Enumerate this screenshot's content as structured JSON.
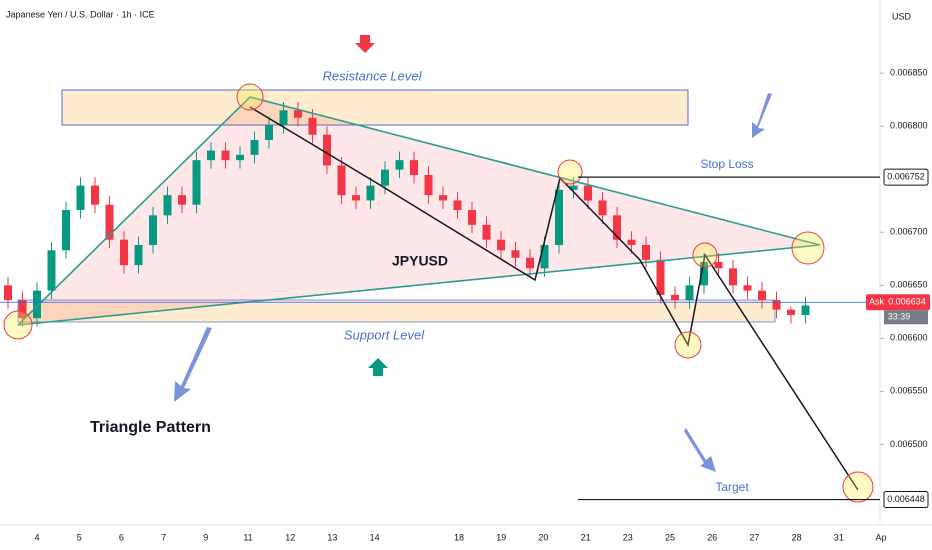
{
  "chart_data": {
    "type": "candlestick",
    "title": "Japanese Yen / U.S. Dollar · 1h · ICE",
    "currency": "USD",
    "annotations": {
      "resistance": "Resistance Level",
      "support": "Support Level",
      "symbol": "JPYUSD",
      "pattern": "Triangle Pattern"
    },
    "stop_loss": {
      "name": "Stop Loss",
      "value": 0.006752,
      "label": "0.006752"
    },
    "target": {
      "name": "Target",
      "value": 0.006448,
      "label": "0.006448"
    },
    "last_price": {
      "name": "Ask",
      "value": 0.006634,
      "label": "0.006634",
      "countdown": "33:39"
    },
    "categories": [
      "4",
      "5",
      "6",
      "7",
      "9",
      "11",
      "12",
      "13",
      "14",
      null,
      "18",
      "19",
      "20",
      "21",
      "23",
      "25",
      "26",
      "27",
      "28",
      "31",
      "Ap"
    ],
    "ylim": [
      0.006424,
      0.006919
    ],
    "yticks": [
      {
        "value": 0.0065,
        "label": "0.006500"
      },
      {
        "value": 0.00655,
        "label": "0.006550"
      },
      {
        "value": 0.0066,
        "label": "0.006600"
      },
      {
        "value": 0.00665,
        "label": "0.006650"
      },
      {
        "value": 0.0067,
        "label": "0.006700"
      },
      {
        "value": 0.0068,
        "label": "0.006800"
      },
      {
        "value": 0.00685,
        "label": "0.006850"
      }
    ],
    "up_color": "#089981",
    "down_color": "#f23645",
    "open": [
      0.00665,
      0.006636,
      0.006619,
      0.006645,
      0.006683,
      0.006721,
      0.006744,
      0.006726,
      0.006693,
      0.006669,
      0.006688,
      0.006716,
      0.006735,
      0.006726,
      0.006768,
      0.006777,
      0.006768,
      0.006773,
      0.006787,
      0.006801,
      0.006815,
      0.006808,
      0.006792,
      0.006763,
      0.006735,
      0.00673,
      0.006744,
      0.006759,
      0.006768,
      0.006754,
      0.006735,
      0.00673,
      0.006721,
      0.006707,
      0.006693,
      0.006683,
      0.006676,
      0.006666,
      0.006688,
      0.00674,
      0.006744,
      0.00673,
      0.006716,
      0.006693,
      0.006688,
      0.006674,
      0.006641,
      0.006636,
      0.00665,
      0.006672,
      0.006666,
      0.00665,
      0.006645,
      0.006636,
      0.006627,
      0.006622
    ],
    "high": [
      0.006658,
      0.006644,
      0.006653,
      0.006691,
      0.006729,
      0.006752,
      0.006752,
      0.006734,
      0.006701,
      0.006696,
      0.006724,
      0.006743,
      0.006743,
      0.006776,
      0.006785,
      0.006785,
      0.006781,
      0.006795,
      0.006809,
      0.006823,
      0.006823,
      0.006816,
      0.0068,
      0.006771,
      0.006743,
      0.006752,
      0.006767,
      0.006776,
      0.006776,
      0.006762,
      0.006743,
      0.006738,
      0.006729,
      0.006715,
      0.006701,
      0.006691,
      0.006684,
      0.006696,
      0.006748,
      0.006752,
      0.006752,
      0.006738,
      0.006724,
      0.006701,
      0.006696,
      0.006682,
      0.006649,
      0.006658,
      0.00668,
      0.00668,
      0.006674,
      0.006658,
      0.006653,
      0.006644,
      0.00663,
      0.006639
    ],
    "low": [
      0.006628,
      0.006611,
      0.006611,
      0.006637,
      0.006675,
      0.006713,
      0.006718,
      0.006685,
      0.006661,
      0.006661,
      0.00668,
      0.006708,
      0.006718,
      0.006718,
      0.00676,
      0.00676,
      0.00676,
      0.006765,
      0.006779,
      0.006793,
      0.0068,
      0.006784,
      0.006755,
      0.006727,
      0.006722,
      0.006722,
      0.006736,
      0.006751,
      0.006746,
      0.006727,
      0.006722,
      0.006713,
      0.006699,
      0.006685,
      0.006675,
      0.006668,
      0.006658,
      0.006658,
      0.00668,
      0.006732,
      0.006722,
      0.006708,
      0.006685,
      0.00668,
      0.006666,
      0.006633,
      0.006628,
      0.006628,
      0.006642,
      0.006658,
      0.006642,
      0.006637,
      0.006628,
      0.006619,
      0.006614,
      0.006614
    ],
    "close": [
      0.006636,
      0.006619,
      0.006645,
      0.006683,
      0.006721,
      0.006744,
      0.006726,
      0.006693,
      0.006669,
      0.006688,
      0.006716,
      0.006735,
      0.006726,
      0.006768,
      0.006777,
      0.006768,
      0.006773,
      0.006787,
      0.006801,
      0.006815,
      0.006808,
      0.006792,
      0.006763,
      0.006735,
      0.00673,
      0.006744,
      0.006759,
      0.006768,
      0.006754,
      0.006735,
      0.00673,
      0.006721,
      0.006707,
      0.006693,
      0.006683,
      0.006676,
      0.006666,
      0.006688,
      0.00674,
      0.006744,
      0.00673,
      0.006716,
      0.006693,
      0.006688,
      0.006674,
      0.006641,
      0.006636,
      0.00665,
      0.006672,
      0.006666,
      0.00665,
      0.006645,
      0.006636,
      0.006627,
      0.006622,
      0.006631
    ]
  }
}
